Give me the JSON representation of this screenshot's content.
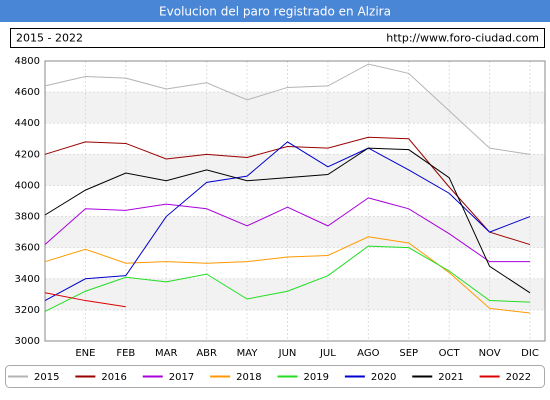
{
  "chart_data": {
    "type": "line",
    "title": "Evolucion del paro registrado en Alzira",
    "subtitle": "2015 - 2022",
    "source": "http://www.foro-ciudad.com",
    "categories": [
      null,
      "ENE",
      "FEB",
      "MAR",
      "ABR",
      "MAY",
      "JUN",
      "JUL",
      "AGO",
      "SEP",
      "OCT",
      "NOV",
      "DIC"
    ],
    "ylim": [
      3000,
      4800
    ],
    "yticks": [
      3000,
      3200,
      3400,
      3600,
      3800,
      4000,
      4200,
      4400,
      4600,
      4800
    ],
    "grid": true,
    "series": [
      {
        "name": "2015",
        "color": "#b4b4b4",
        "values": [
          4640,
          4700,
          4690,
          4620,
          4660,
          4550,
          4630,
          4640,
          4780,
          4720,
          4480,
          4240,
          4200
        ]
      },
      {
        "name": "2016",
        "color": "#990000",
        "values": [
          4200,
          4280,
          4270,
          4170,
          4200,
          4180,
          4250,
          4240,
          4310,
          4300,
          3990,
          3700,
          3620
        ]
      },
      {
        "name": "2017",
        "color": "#aa00dd",
        "values": [
          3620,
          3850,
          3840,
          3880,
          3850,
          3740,
          3860,
          3740,
          3920,
          3850,
          3690,
          3510,
          3510
        ]
      },
      {
        "name": "2018",
        "color": "#ff9900",
        "values": [
          3510,
          3590,
          3500,
          3510,
          3500,
          3510,
          3540,
          3550,
          3670,
          3630,
          3440,
          3210,
          3180
        ]
      },
      {
        "name": "2019",
        "color": "#22dd22",
        "values": [
          3190,
          3320,
          3410,
          3380,
          3430,
          3270,
          3320,
          3420,
          3610,
          3600,
          3450,
          3260,
          3250
        ]
      },
      {
        "name": "2020",
        "color": "#0000cc",
        "values": [
          3260,
          3400,
          3420,
          3800,
          4020,
          4060,
          4280,
          4120,
          4240,
          4100,
          3950,
          3700,
          3800
        ]
      },
      {
        "name": "2021",
        "color": "#000000",
        "values": [
          3810,
          3970,
          4080,
          4030,
          4100,
          4030,
          4050,
          4070,
          4240,
          4230,
          4050,
          3480,
          3310
        ]
      },
      {
        "name": "2022",
        "color": "#dd0000",
        "values": [
          3310,
          3260,
          3220,
          null,
          null,
          null,
          null,
          null,
          null,
          null,
          null,
          null,
          null
        ]
      }
    ]
  }
}
